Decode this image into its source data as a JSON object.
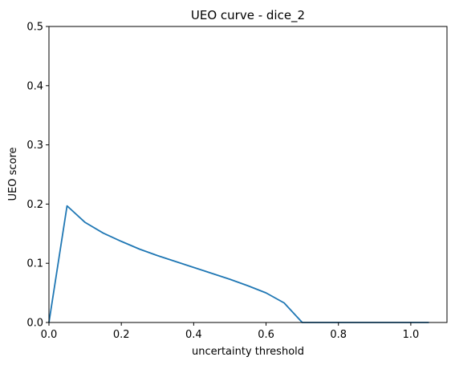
{
  "colors": {
    "series": "#1f77b4",
    "frame": "#000000",
    "background": "#ffffff"
  },
  "chart_data": {
    "type": "line",
    "title": "UEO curve - dice_2",
    "xlabel": "uncertainty threshold",
    "ylabel": "UEO score",
    "xlim": [
      0.0,
      1.1
    ],
    "ylim": [
      0.0,
      0.5
    ],
    "xticks": [
      0.0,
      0.2,
      0.4,
      0.6,
      0.8,
      1.0
    ],
    "xtick_labels": [
      "0.0",
      "0.2",
      "0.4",
      "0.6",
      "0.8",
      "1.0"
    ],
    "yticks": [
      0.0,
      0.1,
      0.2,
      0.3,
      0.4,
      0.5
    ],
    "ytick_labels": [
      "0.0",
      "0.1",
      "0.2",
      "0.3",
      "0.4",
      "0.5"
    ],
    "grid": false,
    "legend": "none",
    "series": [
      {
        "x": [
          0.0,
          0.05,
          0.1,
          0.15,
          0.2,
          0.25,
          0.3,
          0.35,
          0.4,
          0.45,
          0.5,
          0.55,
          0.6,
          0.65,
          0.7,
          0.75,
          0.8,
          0.85,
          0.9,
          0.95,
          1.0,
          1.05
        ],
        "y": [
          0.0,
          0.197,
          0.169,
          0.151,
          0.137,
          0.124,
          0.113,
          0.103,
          0.093,
          0.083,
          0.073,
          0.062,
          0.05,
          0.033,
          0.0,
          0.0,
          0.0,
          0.0,
          0.0,
          0.0,
          0.0,
          0.0
        ]
      }
    ]
  }
}
